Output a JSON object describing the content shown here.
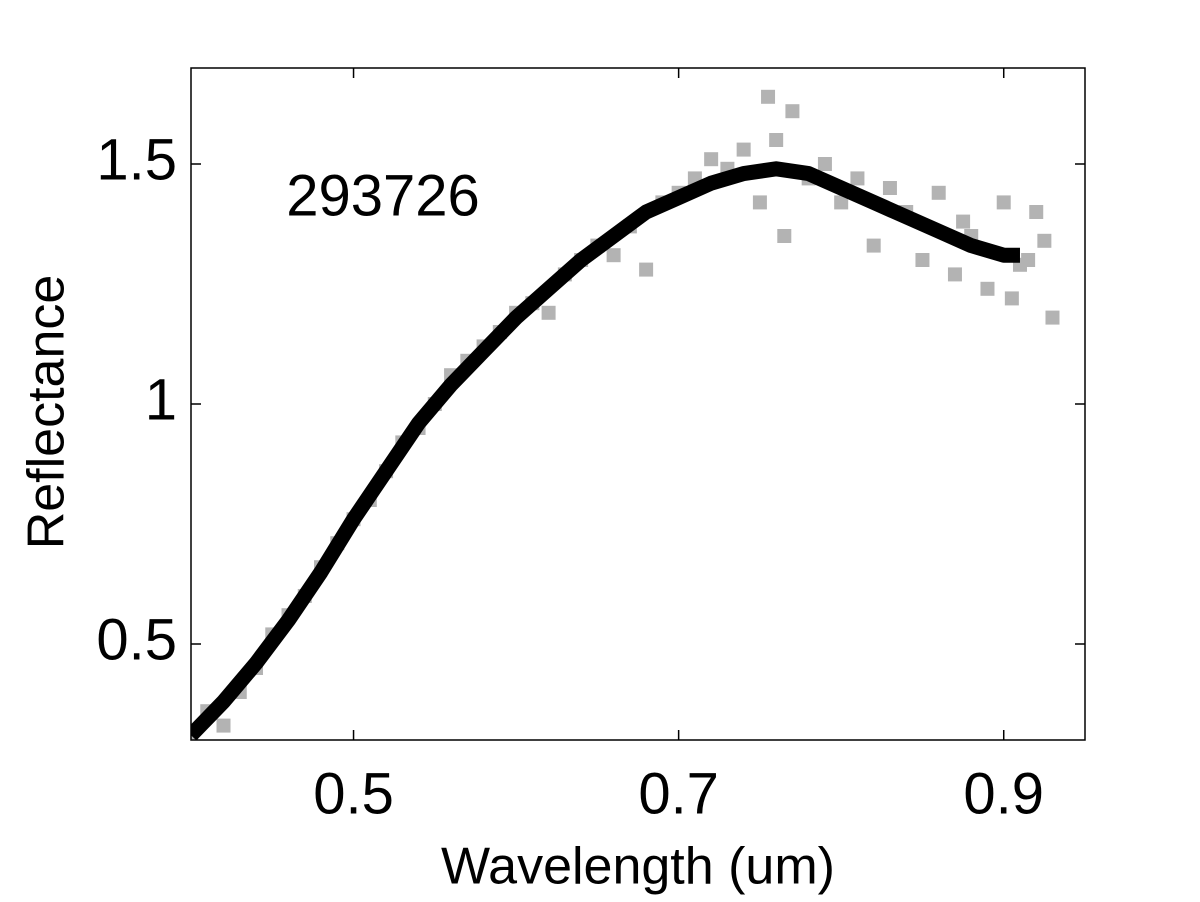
{
  "chart_data": {
    "type": "scatter",
    "annotation": "293726",
    "xlabel": "Wavelength (um)",
    "ylabel": "Reflectance",
    "xlim": [
      0.4,
      0.95
    ],
    "ylim": [
      0.3,
      1.7
    ],
    "xticks": [
      0.5,
      0.7,
      0.9
    ],
    "yticks": [
      0.5,
      1,
      1.5
    ],
    "series": [
      {
        "type": "scatter",
        "color": "#b3b3b3",
        "x": [
          0.4,
          0.41,
          0.42,
          0.43,
          0.44,
          0.45,
          0.46,
          0.47,
          0.48,
          0.49,
          0.5,
          0.51,
          0.52,
          0.53,
          0.54,
          0.55,
          0.56,
          0.57,
          0.58,
          0.59,
          0.6,
          0.61,
          0.62,
          0.63,
          0.64,
          0.65,
          0.66,
          0.67,
          0.68,
          0.69,
          0.7,
          0.71,
          0.72,
          0.73,
          0.74,
          0.75,
          0.755,
          0.76,
          0.765,
          0.77,
          0.78,
          0.79,
          0.8,
          0.81,
          0.82,
          0.83,
          0.84,
          0.85,
          0.86,
          0.87,
          0.875,
          0.88,
          0.89,
          0.9,
          0.905,
          0.91,
          0.915,
          0.92,
          0.925,
          0.93
        ],
        "values": [
          0.3,
          0.36,
          0.33,
          0.4,
          0.45,
          0.52,
          0.56,
          0.6,
          0.66,
          0.71,
          0.76,
          0.8,
          0.86,
          0.92,
          0.95,
          1.0,
          1.06,
          1.09,
          1.12,
          1.15,
          1.19,
          1.21,
          1.19,
          1.27,
          1.3,
          1.33,
          1.31,
          1.37,
          1.28,
          1.42,
          1.44,
          1.47,
          1.51,
          1.49,
          1.53,
          1.42,
          1.64,
          1.55,
          1.35,
          1.61,
          1.47,
          1.5,
          1.42,
          1.47,
          1.33,
          1.45,
          1.4,
          1.3,
          1.44,
          1.27,
          1.38,
          1.35,
          1.24,
          1.42,
          1.22,
          1.29,
          1.3,
          1.4,
          1.34,
          1.18
        ]
      },
      {
        "type": "line",
        "color": "#000000",
        "x": [
          0.4,
          0.42,
          0.44,
          0.46,
          0.48,
          0.5,
          0.52,
          0.54,
          0.56,
          0.58,
          0.6,
          0.62,
          0.64,
          0.66,
          0.68,
          0.7,
          0.72,
          0.74,
          0.76,
          0.78,
          0.8,
          0.82,
          0.84,
          0.86,
          0.88,
          0.9,
          0.91
        ],
        "values": [
          0.31,
          0.38,
          0.46,
          0.55,
          0.65,
          0.76,
          0.86,
          0.96,
          1.04,
          1.11,
          1.18,
          1.24,
          1.3,
          1.35,
          1.4,
          1.43,
          1.46,
          1.48,
          1.49,
          1.48,
          1.45,
          1.42,
          1.39,
          1.36,
          1.33,
          1.31,
          1.31
        ]
      }
    ]
  }
}
